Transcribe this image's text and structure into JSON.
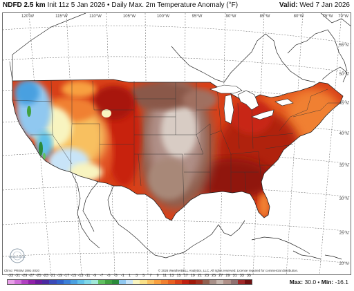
{
  "header": {
    "product": "NDFD 2.5 km",
    "init": "Init 11z 5 Jan 2026",
    "separator": "•",
    "field": "Daily Max. 2m Temperature Anomaly (°F)",
    "valid_label": "Valid:",
    "valid_date": "Wed 7 Jan 2026"
  },
  "map": {
    "lon_labels": [
      "120°W",
      "115°W",
      "110°W",
      "105°W",
      "100°W",
      "95°W",
      "90°W",
      "85°W",
      "80°W",
      "75°W",
      "70°W"
    ],
    "lat_labels": [
      "55°N",
      "50°N",
      "45°N",
      "40°N",
      "35°N",
      "30°N",
      "25°N",
      "20°N"
    ],
    "colors": {
      "ocean": "#ffffff",
      "land": "#ffffff",
      "border": "#222222"
    }
  },
  "footer": {
    "climo_note": "Climo: PRISM 1991-2020",
    "copyright": "© 2026 WeatherBELL Analytics, LLC. All rights reserved. License required for commercial distribution.",
    "logo_text": "WeatherBELL"
  },
  "colorbar": {
    "ticks": [
      "-33",
      "-31",
      "-29",
      "-27",
      "-25",
      "-23",
      "-21",
      "-19",
      "-17",
      "-15",
      "-13",
      "-11",
      "-9",
      "-7",
      "-5",
      "-3",
      "-1",
      "1",
      "3",
      "5",
      "7",
      "9",
      "11",
      "13",
      "15",
      "17",
      "19",
      "21",
      "23",
      "25",
      "27",
      "29",
      "31",
      "33",
      "35"
    ],
    "colors": [
      "#e8a0e8",
      "#d070d8",
      "#b040c0",
      "#9020a8",
      "#6a1a9a",
      "#4a2aa0",
      "#3a4ab8",
      "#3060c8",
      "#3c80d8",
      "#4aa0e0",
      "#60c0e8",
      "#80d8e8",
      "#a0e8d8",
      "#60c060",
      "#40a040",
      "#2a8a3a",
      "#90c8f0",
      "#c8e4f8",
      "#f8f4c0",
      "#f8e088",
      "#f8c060",
      "#f8a040",
      "#f08030",
      "#e86020",
      "#d84018",
      "#c02010",
      "#a01808",
      "#a03020",
      "#906050",
      "#a89088",
      "#c8b8b0",
      "#b09088",
      "#907070",
      "#a02828",
      "#701010"
    ]
  },
  "stats": {
    "max_label": "Max:",
    "max_value": "30.0",
    "min_label": "Min:",
    "min_value": "-16.1",
    "separator": "•"
  }
}
